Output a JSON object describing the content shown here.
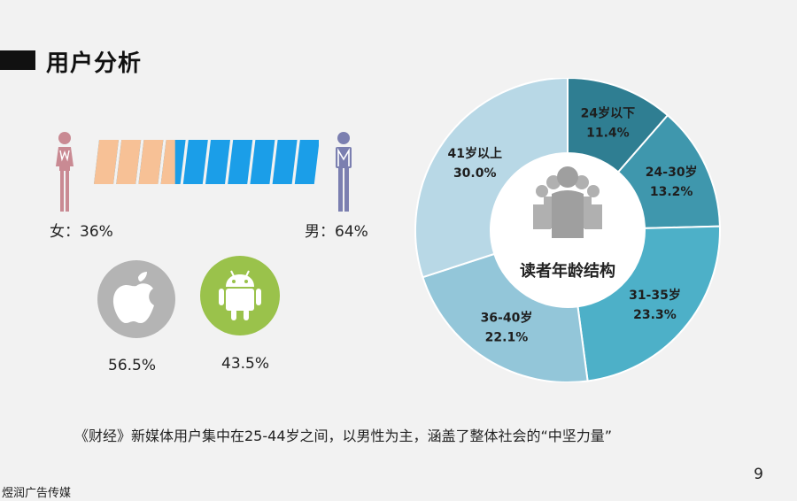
{
  "header": {
    "title": "用户分析"
  },
  "gender": {
    "female_label": "女：36%",
    "male_label": "男：64%",
    "female_share": 0.36,
    "female_color": "#f7c196",
    "male_color": "#1b9ee8",
    "female_figure_color": "#c98a93",
    "male_figure_color": "#7b7fb0"
  },
  "os": {
    "ios_pct": "56.5%",
    "android_pct": "43.5%",
    "ios_color": "#b4b4b4",
    "android_color": "#9ac24b"
  },
  "chart_data": {
    "type": "pie",
    "title": "读者年龄结构",
    "categories": [
      "24岁以下",
      "24-30岁",
      "31-35岁",
      "36-40岁",
      "41岁以上"
    ],
    "values": [
      11.4,
      13.2,
      23.3,
      22.1,
      30.0
    ],
    "value_labels": [
      "11.4%",
      "13.2%",
      "23.3%",
      "22.1%",
      "30.0%"
    ],
    "colors": [
      "#2f7e92",
      "#3f97ad",
      "#4db0c8",
      "#93c6d9",
      "#b8d8e6"
    ]
  },
  "caption": "《财经》新媒体用户集中在25-44岁之间，以男性为主，涵盖了整体社会的“中坚力量”",
  "page_number": "9",
  "footer": "煜润广告传媒"
}
